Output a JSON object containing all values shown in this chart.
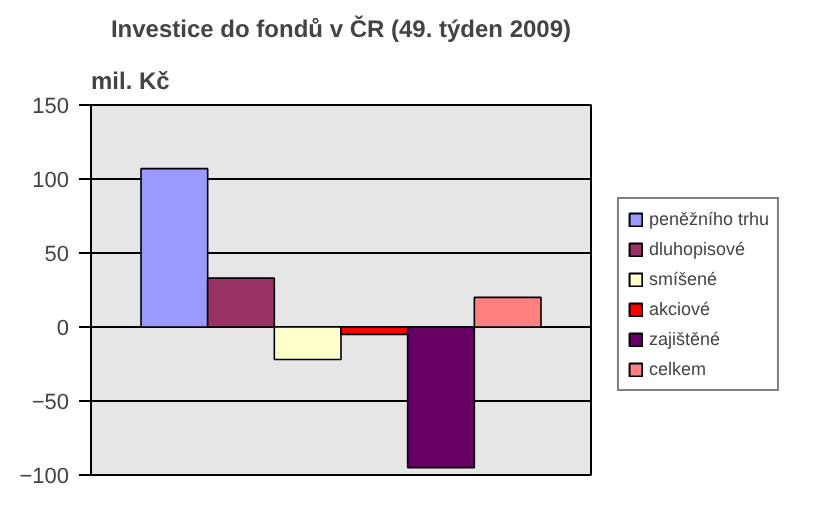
{
  "chart_data": {
    "type": "bar",
    "title": "Investice do fondů v ČR (49. týden 2009)",
    "ylabel": "mil. Kč",
    "categories": [
      null
    ],
    "series": [
      {
        "name": "peněžního trhu",
        "color": "#9999ff",
        "values": [
          107
        ]
      },
      {
        "name": "dluhopisové",
        "color": "#993366",
        "values": [
          33
        ]
      },
      {
        "name": "smíšené",
        "color": "#ffffcc",
        "values": [
          -22
        ]
      },
      {
        "name": "akciové",
        "color": "#ff0000",
        "values": [
          -5
        ]
      },
      {
        "name": "zajištěné",
        "color": "#660066",
        "values": [
          -95
        ]
      },
      {
        "name": "celkem",
        "color": "#ff8080",
        "values": [
          20
        ]
      }
    ],
    "ylim": [
      -100,
      150
    ],
    "yticks": [
      -100,
      -50,
      0,
      50,
      100,
      150
    ],
    "grid": "y",
    "legend": "right"
  }
}
